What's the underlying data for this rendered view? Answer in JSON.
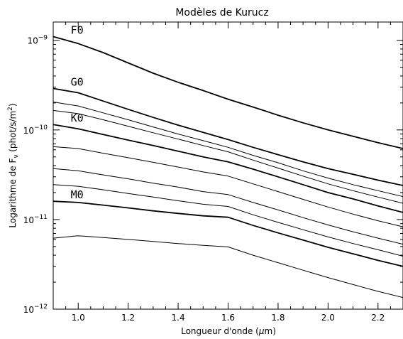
{
  "chart_data": {
    "type": "line",
    "title": "Modèles de Kurucz",
    "xlabel_pre": "Longueur d'onde (",
    "xlabel_mu": "μ",
    "xlabel_post": "m)",
    "ylabel_pre": "Logarithme de F",
    "ylabel_sub": "ν",
    "ylabel_mid": " (phot/s/m",
    "ylabel_sup": "2",
    "ylabel_post": ")",
    "xlim": [
      0.9,
      2.3
    ],
    "ylim": [
      1e-12,
      1.6e-09
    ],
    "yscale": "log",
    "x_ticks": [
      1.0,
      1.2,
      1.4,
      1.6,
      1.8,
      2.0,
      2.2
    ],
    "x_tick_labels": [
      "1.0",
      "1.2",
      "1.4",
      "1.6",
      "1.8",
      "2.0",
      "2.2"
    ],
    "y_ticks": [
      1e-12,
      1e-11,
      1e-10,
      1e-09
    ],
    "y_tick_base": "10",
    "y_tick_exps": [
      "−12",
      "−11",
      "−10",
      "−9"
    ],
    "series": [
      {
        "name": "F0",
        "bold": true,
        "x": [
          0.9,
          1.0,
          1.1,
          1.2,
          1.3,
          1.4,
          1.5,
          1.6,
          1.7,
          1.8,
          1.9,
          2.0,
          2.1,
          2.2,
          2.3
        ],
        "y": [
          1.1e-09,
          9.2e-10,
          7.3e-10,
          5.6e-10,
          4.3e-10,
          3.4e-10,
          2.75e-10,
          2.2e-10,
          1.8e-10,
          1.46e-10,
          1.2e-10,
          1e-10,
          8.5e-11,
          7.2e-11,
          6.2e-11
        ]
      },
      {
        "name": "G0",
        "bold": true,
        "x": [
          0.9,
          1.0,
          1.1,
          1.2,
          1.3,
          1.4,
          1.5,
          1.6,
          1.7,
          1.8,
          1.9,
          2.0,
          2.1,
          2.2,
          2.3
        ],
        "y": [
          2.9e-10,
          2.6e-10,
          2.1e-10,
          1.7e-10,
          1.38e-10,
          1.13e-10,
          9.4e-11,
          7.8e-11,
          6.4e-11,
          5.3e-11,
          4.4e-11,
          3.7e-11,
          3.2e-11,
          2.75e-11,
          2.4e-11
        ]
      },
      {
        "name": "",
        "bold": false,
        "x": [
          0.9,
          1.0,
          1.1,
          1.2,
          1.3,
          1.4,
          1.5,
          1.6,
          1.7,
          1.8,
          1.9,
          2.0,
          2.1,
          2.2,
          2.3
        ],
        "y": [
          2.05e-10,
          1.85e-10,
          1.55e-10,
          1.3e-10,
          1.08e-10,
          9e-11,
          7.6e-11,
          6.4e-11,
          5.2e-11,
          4.3e-11,
          3.5e-11,
          2.9e-11,
          2.45e-11,
          2.1e-11,
          1.8e-11
        ]
      },
      {
        "name": "",
        "bold": false,
        "x": [
          0.9,
          1.0,
          1.1,
          1.2,
          1.3,
          1.4,
          1.5,
          1.6,
          1.7,
          1.8,
          1.9,
          2.0,
          2.1,
          2.2,
          2.3
        ],
        "y": [
          1.65e-10,
          1.52e-10,
          1.3e-10,
          1.1e-10,
          9.3e-11,
          7.9e-11,
          6.7e-11,
          5.7e-11,
          4.6e-11,
          3.75e-11,
          3.05e-11,
          2.5e-11,
          2.1e-11,
          1.78e-11,
          1.52e-11
        ]
      },
      {
        "name": "K0",
        "bold": true,
        "x": [
          0.9,
          1.0,
          1.1,
          1.2,
          1.3,
          1.4,
          1.5,
          1.6,
          1.7,
          1.8,
          1.9,
          2.0,
          2.1,
          2.2,
          2.3
        ],
        "y": [
          1.15e-10,
          1.03e-10,
          8.9e-11,
          7.7e-11,
          6.7e-11,
          5.8e-11,
          5e-11,
          4.4e-11,
          3.65e-11,
          3e-11,
          2.45e-11,
          2e-11,
          1.7e-11,
          1.42e-11,
          1.2e-11
        ]
      },
      {
        "name": "",
        "bold": false,
        "x": [
          0.9,
          1.0,
          1.1,
          1.2,
          1.3,
          1.4,
          1.5,
          1.6,
          1.7,
          1.8,
          1.9,
          2.0,
          2.1,
          2.2,
          2.3
        ],
        "y": [
          6.5e-11,
          6.2e-11,
          5.5e-11,
          4.9e-11,
          4.35e-11,
          3.85e-11,
          3.4e-11,
          3.05e-11,
          2.5e-11,
          2.05e-11,
          1.68e-11,
          1.38e-11,
          1.15e-11,
          9.7e-12,
          8.3e-12
        ]
      },
      {
        "name": "",
        "bold": false,
        "x": [
          0.9,
          1.0,
          1.1,
          1.2,
          1.3,
          1.4,
          1.5,
          1.6,
          1.7,
          1.8,
          1.9,
          2.0,
          2.1,
          2.2,
          2.3
        ],
        "y": [
          3.7e-11,
          3.5e-11,
          3.15e-11,
          2.85e-11,
          2.55e-11,
          2.3e-11,
          2.05e-11,
          1.9e-11,
          1.55e-11,
          1.28e-11,
          1.05e-11,
          8.7e-12,
          7.3e-12,
          6.2e-12,
          5.3e-12
        ]
      },
      {
        "name": "",
        "bold": false,
        "x": [
          0.9,
          1.0,
          1.1,
          1.2,
          1.3,
          1.4,
          1.5,
          1.6,
          1.7,
          1.8,
          1.9,
          2.0,
          2.1,
          2.2,
          2.3
        ],
        "y": [
          2.45e-11,
          2.35e-11,
          2.15e-11,
          1.95e-11,
          1.78e-11,
          1.62e-11,
          1.48e-11,
          1.4e-11,
          1.13e-11,
          9.3e-12,
          7.7e-12,
          6.4e-12,
          5.4e-12,
          4.6e-12,
          3.9e-12
        ]
      },
      {
        "name": "M0",
        "bold": true,
        "x": [
          0.9,
          1.0,
          1.1,
          1.2,
          1.3,
          1.4,
          1.5,
          1.6,
          1.7,
          1.8,
          1.9,
          2.0,
          2.1,
          2.2,
          2.3
        ],
        "y": [
          1.6e-11,
          1.55e-11,
          1.45e-11,
          1.35e-11,
          1.25e-11,
          1.17e-11,
          1.1e-11,
          1.06e-11,
          8.6e-12,
          7.1e-12,
          5.9e-12,
          4.9e-12,
          4.15e-12,
          3.5e-12,
          3e-12
        ]
      },
      {
        "name": "",
        "bold": false,
        "x": [
          0.9,
          1.0,
          1.1,
          1.2,
          1.3,
          1.4,
          1.5,
          1.6,
          1.7,
          1.8,
          1.9,
          2.0,
          2.1,
          2.2,
          2.3
        ],
        "y": [
          6.2e-12,
          6.6e-12,
          6.3e-12,
          6e-12,
          5.7e-12,
          5.4e-12,
          5.15e-12,
          4.95e-12,
          4e-12,
          3.3e-12,
          2.72e-12,
          2.25e-12,
          1.88e-12,
          1.58e-12,
          1.35e-12
        ]
      }
    ]
  }
}
